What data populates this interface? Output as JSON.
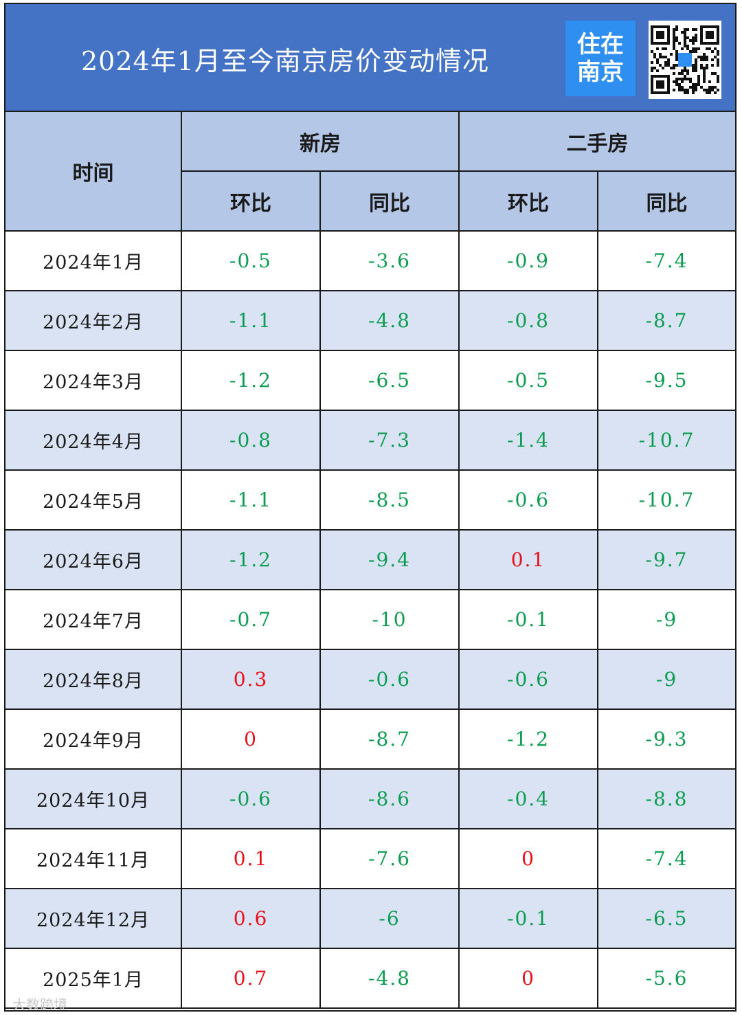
{
  "header": {
    "title": "2024年1月至今南京房价变动情况",
    "logo_line1": "住在",
    "logo_line2": "南京",
    "qr_icon": "qr-code-icon"
  },
  "table": {
    "col_time": "时间",
    "group_new": "新房",
    "group_second": "二手房",
    "sub_mom": "环比",
    "sub_yoy": "同比",
    "rows": [
      {
        "date": "2024年1月",
        "new_mom": "-0.5",
        "new_yoy": "-3.6",
        "sec_mom": "-0.9",
        "sec_yoy": "-7.4"
      },
      {
        "date": "2024年2月",
        "new_mom": "-1.1",
        "new_yoy": "-4.8",
        "sec_mom": "-0.8",
        "sec_yoy": "-8.7"
      },
      {
        "date": "2024年3月",
        "new_mom": "-1.2",
        "new_yoy": "-6.5",
        "sec_mom": "-0.5",
        "sec_yoy": "-9.5"
      },
      {
        "date": "2024年4月",
        "new_mom": "-0.8",
        "new_yoy": "-7.3",
        "sec_mom": "-1.4",
        "sec_yoy": "-10.7"
      },
      {
        "date": "2024年5月",
        "new_mom": "-1.1",
        "new_yoy": "-8.5",
        "sec_mom": "-0.6",
        "sec_yoy": "-10.7"
      },
      {
        "date": "2024年6月",
        "new_mom": "-1.2",
        "new_yoy": "-9.4",
        "sec_mom": "0.1",
        "sec_yoy": "-9.7"
      },
      {
        "date": "2024年7月",
        "new_mom": "-0.7",
        "new_yoy": "-10",
        "sec_mom": "-0.1",
        "sec_yoy": "-9"
      },
      {
        "date": "2024年8月",
        "new_mom": "0.3",
        "new_yoy": "-0.6",
        "sec_mom": "-0.6",
        "sec_yoy": "-9"
      },
      {
        "date": "2024年9月",
        "new_mom": "0",
        "new_yoy": "-8.7",
        "sec_mom": "-1.2",
        "sec_yoy": "-9.3"
      },
      {
        "date": "2024年10月",
        "new_mom": "-0.6",
        "new_yoy": "-8.6",
        "sec_mom": "-0.4",
        "sec_yoy": "-8.8"
      },
      {
        "date": "2024年11月",
        "new_mom": "0.1",
        "new_yoy": "-7.6",
        "sec_mom": "0",
        "sec_yoy": "-7.4"
      },
      {
        "date": "2024年12月",
        "new_mom": "0.6",
        "new_yoy": "-6",
        "sec_mom": "-0.1",
        "sec_yoy": "-6.5"
      },
      {
        "date": "2025年1月",
        "new_mom": "0.7",
        "new_yoy": "-4.8",
        "sec_mom": "0",
        "sec_yoy": "-5.6"
      }
    ]
  },
  "colors": {
    "header_bg": "#4472c4",
    "header_cell_bg": "#b4c7e7",
    "alt_row_bg": "#dae3f3",
    "positive": "#e8101a",
    "negative": "#0a9d50",
    "logo_bg": "#2f8ff0"
  },
  "watermark": "大数跨境"
}
